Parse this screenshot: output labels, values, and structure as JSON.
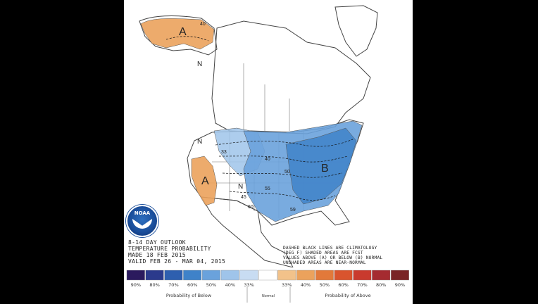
{
  "caption": {
    "line1": "8-14 DAY OUTLOOK",
    "line2": "TEMPERATURE PROBABILITY",
    "line3": "MADE  18 FEB 2015",
    "line4": "VALID  FEB 26 - MAR 04, 2015"
  },
  "map_notes": {
    "line1": "DASHED BLACK LINES ARE CLIMATOLOGY",
    "line2": "(DEG F) SHADED AREAS ARE FCST",
    "line3": "VALUES ABOVE (A) OR BELOW (B) NORMAL",
    "line4": "UNSHADED AREAS ARE NEAR-NORMAL"
  },
  "logo": {
    "text": "NOAA"
  },
  "map_labels": {
    "alaska_a": "A",
    "alaska_n": "N",
    "alaska_40": "40",
    "west_n": "N",
    "west_a": "A",
    "west_n2": "N",
    "east_b": "B",
    "iso_33": "33",
    "iso_40": "40",
    "iso_45": "45",
    "iso_50": "50",
    "iso_55": "55",
    "iso_59": "59",
    "iso_60": "60"
  },
  "legend": {
    "below_percents": [
      "90%",
      "80%",
      "70%",
      "60%",
      "50%",
      "40%",
      "33%"
    ],
    "above_percents": [
      "33%",
      "40%",
      "50%",
      "60%",
      "70%",
      "80%",
      "90%"
    ],
    "below_colors": [
      "#2b1a5e",
      "#2b3a8c",
      "#2e5faf",
      "#3f82c9",
      "#6aa2dc",
      "#9fc4ea",
      "#c8dcf2"
    ],
    "normal_color": "#ffffff",
    "above_colors": [
      "#f2c28a",
      "#eba25c",
      "#e2793a",
      "#d9542e",
      "#c93a2e",
      "#a52b30",
      "#7a2426"
    ],
    "label_below": "Probability of Below",
    "label_normal": "Normal",
    "label_above": "Probability of Above"
  }
}
